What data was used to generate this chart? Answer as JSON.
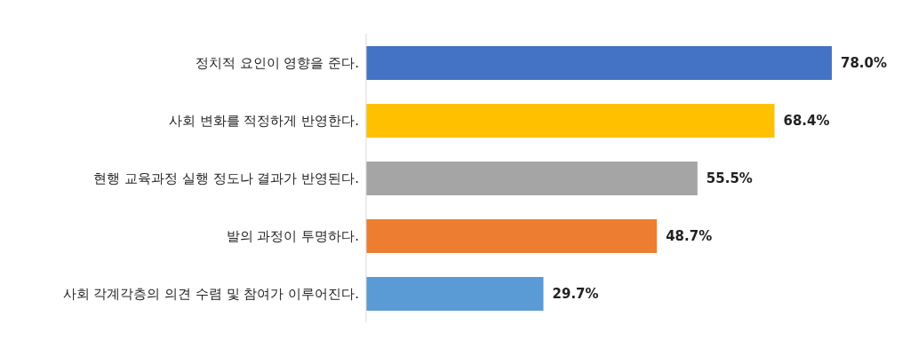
{
  "chart_data": {
    "type": "bar",
    "orientation": "horizontal",
    "categories": [
      "정치적 요인이 영향을 준다.",
      "사회 변화를 적정하게 반영한다.",
      "현행 교육과정 실행 정도나 결과가 반영된다.",
      "발의 과정이 투명하다.",
      "사회 각계각층의 의견 수렴 및 참여가 이루어진다."
    ],
    "values": [
      78.0,
      68.4,
      55.5,
      48.7,
      29.7
    ],
    "colors": [
      "#4472c4",
      "#ffc000",
      "#a5a5a5",
      "#ed7d31",
      "#5b9bd5"
    ],
    "value_labels": [
      "78.0%",
      "68.4%",
      "55.5%",
      "48.7%",
      "29.7%"
    ],
    "grid": false
  }
}
